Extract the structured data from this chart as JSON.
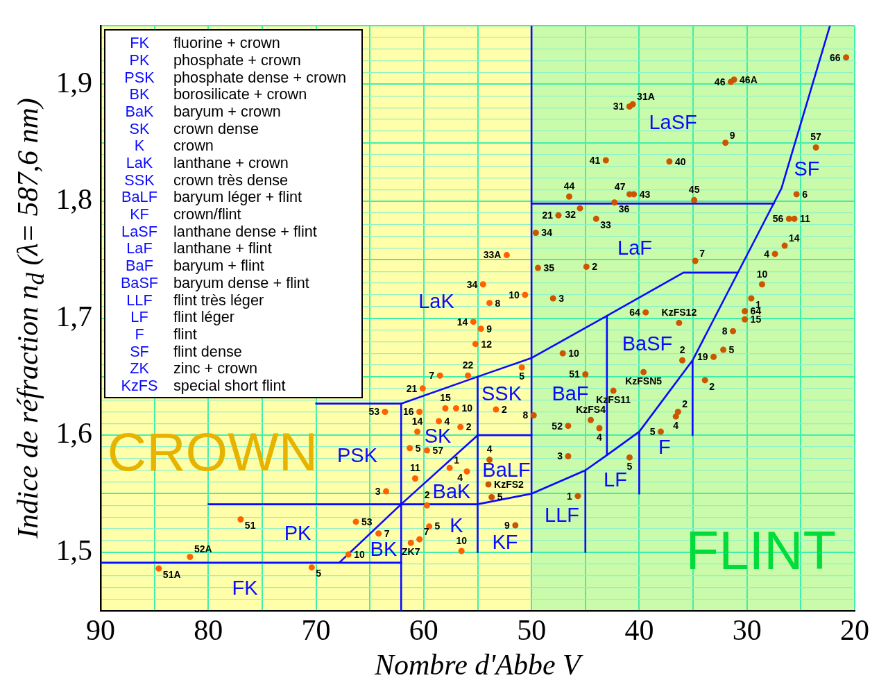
{
  "chart_data": {
    "type": "scatter",
    "xlabel": "Nombre d'Abbe V",
    "ylabel": "Indice de réfraction n$_{d}$ (λ= 587,6 nm)",
    "xlim": [
      90,
      20
    ],
    "ylim": [
      1.45,
      1.95
    ],
    "xticks": [
      90,
      {
        "value": 85,
        "label": null
      },
      80,
      {
        "value": 75,
        "label": null
      },
      70,
      {
        "value": 65,
        "label": null
      },
      60,
      {
        "value": 55,
        "label": null
      },
      50,
      {
        "value": 45,
        "label": null
      },
      40,
      {
        "value": 35,
        "label": null
      },
      30,
      {
        "value": 25,
        "label": null
      },
      20
    ],
    "yticks": [
      {
        "value": 1.45,
        "label": null
      },
      {
        "value": 1.46,
        "label": null
      },
      {
        "value": 1.47,
        "label": null
      },
      {
        "value": 1.48,
        "label": null
      },
      {
        "value": 1.49,
        "label": null
      },
      {
        "value": 1.5,
        "label": "1,5"
      },
      {
        "value": 1.51,
        "label": null
      },
      {
        "value": 1.52,
        "label": null
      },
      {
        "value": 1.53,
        "label": null
      },
      {
        "value": 1.54,
        "label": null
      },
      {
        "value": 1.55,
        "label": null
      },
      {
        "value": 1.56,
        "label": null
      },
      {
        "value": 1.57,
        "label": null
      },
      {
        "value": 1.58,
        "label": null
      },
      {
        "value": 1.59,
        "label": null
      },
      {
        "value": 1.6,
        "label": "1,6"
      },
      {
        "value": 1.61,
        "label": null
      },
      {
        "value": 1.62,
        "label": null
      },
      {
        "value": 1.63,
        "label": null
      },
      {
        "value": 1.64,
        "label": null
      },
      {
        "value": 1.65,
        "label": null
      },
      {
        "value": 1.66,
        "label": null
      },
      {
        "value": 1.67,
        "label": null
      },
      {
        "value": 1.68,
        "label": null
      },
      {
        "value": 1.69,
        "label": null
      },
      {
        "value": 1.7,
        "label": "1,7"
      },
      {
        "value": 1.71,
        "label": null
      },
      {
        "value": 1.72,
        "label": null
      },
      {
        "value": 1.73,
        "label": null
      },
      {
        "value": 1.74,
        "label": null
      },
      {
        "value": 1.75,
        "label": null
      },
      {
        "value": 1.76,
        "label": null
      },
      {
        "value": 1.77,
        "label": null
      },
      {
        "value": 1.78,
        "label": null
      },
      {
        "value": 1.79,
        "label": null
      },
      {
        "value": 1.8,
        "label": "1,8"
      },
      {
        "value": 1.81,
        "label": null
      },
      {
        "value": 1.82,
        "label": null
      },
      {
        "value": 1.83,
        "label": null
      },
      {
        "value": 1.84,
        "label": null
      },
      {
        "value": 1.85,
        "label": null
      },
      {
        "value": 1.86,
        "label": null
      },
      {
        "value": 1.87,
        "label": null
      },
      {
        "value": 1.88,
        "label": null
      },
      {
        "value": 1.89,
        "label": null
      },
      {
        "value": 1.9,
        "label": "1,9"
      },
      {
        "value": 1.91,
        "label": null
      },
      {
        "value": 1.92,
        "label": null
      },
      {
        "value": 1.93,
        "label": null
      },
      {
        "value": 1.94,
        "label": null
      },
      {
        "value": 1.95,
        "label": null
      }
    ],
    "grid": true,
    "marker": "circle",
    "bands": [
      {
        "axis": "x",
        "from": 90,
        "to": 50,
        "label": "CROWN",
        "color": "#ffffaa"
      },
      {
        "axis": "x",
        "from": 50,
        "to": 20,
        "label": "FLINT",
        "color": "#c9fbaa"
      }
    ],
    "annotations": [
      "FK fluorine + crown",
      "PK phosphate + crown",
      "PSK phosphate dense + crown",
      "BK borosilicate + crown",
      "BaK baryum + crown",
      "SK crown dense",
      "K crown",
      "LaK lanthane + crown",
      "SSK crown très dense",
      "BaLF baryum léger + flint",
      "KF crown/flint",
      "LaSF lanthane dense + flint",
      "LaF lanthane + flint",
      "BaF baryum + flint",
      "BaSF baryum dense + flint",
      "LLF flint très léger",
      "LF flint léger",
      "F flint",
      "SF flint dense",
      "ZK zinc + crown",
      "KzFS special short flint",
      "FK",
      "PK",
      "PSK",
      "BK",
      "BaK",
      "SK",
      "K",
      "LaK",
      "SSK",
      "BaLF",
      "KF",
      "LaSF",
      "LaF",
      "BaF",
      "BaSF",
      "LLF",
      "LF",
      "F",
      "SF"
    ],
    "series": [
      {
        "type": "line",
        "color": "#0a0aff",
        "marker": "none",
        "x": [
          90,
          62.1
        ],
        "values": [
          1.491,
          1.491
        ]
      },
      {
        "type": "line",
        "color": "#0a0aff",
        "marker": "none",
        "x": [
          67.85,
          62.1,
          55,
          50
        ],
        "values": [
          1.491,
          1.541,
          1.6,
          1.6
        ]
      },
      {
        "type": "line",
        "color": "#0a0aff",
        "marker": "none",
        "x": [
          80,
          55,
          50,
          45,
          43,
          40,
          35.05,
          26.8,
          22.3
        ],
        "values": [
          1.541,
          1.541,
          1.55,
          1.57,
          1.583,
          1.603,
          1.664,
          1.811,
          1.95
        ]
      },
      {
        "type": "line",
        "color": "#0a0aff",
        "marker": "none",
        "x": [
          62.1,
          62.1
        ],
        "values": [
          1.627,
          1.45
        ]
      },
      {
        "type": "line",
        "color": "#0a0aff",
        "marker": "none",
        "x": [
          70,
          62.1,
          55,
          50,
          43,
          35.9,
          30.85
        ],
        "values": [
          1.627,
          1.627,
          1.65,
          1.666,
          1.702,
          1.739,
          1.739
        ]
      },
      {
        "type": "line",
        "color": "#0a0aff",
        "marker": "none",
        "x": [
          55,
          55
        ],
        "values": [
          1.65,
          1.5
        ]
      },
      {
        "type": "line",
        "color": "#0a0aff",
        "marker": "none",
        "x": [
          50,
          50
        ],
        "values": [
          1.95,
          1.5
        ]
      },
      {
        "type": "line",
        "color": "#0a0aff",
        "marker": "none",
        "x": [
          50,
          27.5
        ],
        "values": [
          1.798,
          1.798
        ]
      },
      {
        "type": "line",
        "color": "#0a0aff",
        "marker": "none",
        "x": [
          43,
          43
        ],
        "values": [
          1.702,
          1.583
        ]
      },
      {
        "type": "line",
        "color": "#0a0aff",
        "marker": "none",
        "x": [
          45,
          45
        ],
        "values": [
          1.57,
          1.5
        ]
      },
      {
        "type": "line",
        "color": "#0a0aff",
        "marker": "none",
        "x": [
          40,
          40
        ],
        "values": [
          1.603,
          1.55
        ]
      },
      {
        "type": "line",
        "color": "#0a0aff",
        "marker": "none",
        "x": [
          35.05,
          35.05
        ],
        "values": [
          1.664,
          1.6
        ]
      },
      {
        "name": "66",
        "color": "#cc5500",
        "x": [
          20.8
        ],
        "values": [
          1.923
        ]
      },
      {
        "name": "46",
        "color": "#cc5500",
        "x": [
          31.5
        ],
        "values": [
          1.902
        ]
      },
      {
        "name": "46A",
        "color": "#cc5500",
        "x": [
          31.2
        ],
        "values": [
          1.904
        ]
      },
      {
        "name": "31",
        "color": "#cc5500",
        "x": [
          40.9
        ],
        "values": [
          1.881
        ]
      },
      {
        "name": "31A",
        "color": "#cc5500",
        "x": [
          40.6
        ],
        "values": [
          1.883
        ]
      },
      {
        "name": "9",
        "color": "#cc5500",
        "x": [
          32.0
        ],
        "values": [
          1.85
        ]
      },
      {
        "name": "57",
        "color": "#cc5500",
        "x": [
          23.6
        ],
        "values": [
          1.846
        ]
      },
      {
        "name": "41",
        "color": "#cc5500",
        "x": [
          43.1
        ],
        "values": [
          1.835
        ]
      },
      {
        "name": "40",
        "color": "#cc5500",
        "x": [
          37.2
        ],
        "values": [
          1.834
        ]
      },
      {
        "name": "44",
        "color": "#cc5500",
        "x": [
          46.5
        ],
        "values": [
          1.804
        ]
      },
      {
        "name": "47",
        "color": "#cc5500",
        "x": [
          40.9
        ],
        "values": [
          1.806
        ]
      },
      {
        "name": "43",
        "color": "#cc5500",
        "x": [
          40.5
        ],
        "values": [
          1.806
        ]
      },
      {
        "name": "36",
        "color": "#cc5500",
        "x": [
          42.3
        ],
        "values": [
          1.799
        ]
      },
      {
        "name": "45",
        "color": "#cc5500",
        "x": [
          34.9
        ],
        "values": [
          1.801
        ]
      },
      {
        "name": "6",
        "color": "#cc5500",
        "x": [
          25.4
        ],
        "values": [
          1.806
        ]
      },
      {
        "name": "32",
        "color": "#cc5500",
        "x": [
          45.5
        ],
        "values": [
          1.794
        ]
      },
      {
        "name": "33",
        "color": "#cc5500",
        "x": [
          44.0
        ],
        "values": [
          1.785
        ]
      },
      {
        "name": "21",
        "color": "#cc5500",
        "x": [
          47.5
        ],
        "values": [
          1.788
        ]
      },
      {
        "name": "56",
        "color": "#cc5500",
        "x": [
          26.1
        ],
        "values": [
          1.785
        ]
      },
      {
        "name": "11",
        "color": "#cc5500",
        "x": [
          25.6
        ],
        "values": [
          1.785
        ]
      },
      {
        "name": "34",
        "color": "#cc5500",
        "x": [
          49.6
        ],
        "values": [
          1.773
        ]
      },
      {
        "name": "14",
        "color": "#cc5500",
        "x": [
          26.5
        ],
        "values": [
          1.762
        ]
      },
      {
        "name": "4",
        "color": "#cc5500",
        "x": [
          27.4
        ],
        "values": [
          1.755
        ]
      },
      {
        "name": "7",
        "color": "#cc5500",
        "x": [
          34.8
        ],
        "values": [
          1.749
        ]
      },
      {
        "name": "33A",
        "color": "#ff6000",
        "x": [
          52.3
        ],
        "values": [
          1.754
        ]
      },
      {
        "name": "35",
        "color": "#cc5500",
        "x": [
          49.4
        ],
        "values": [
          1.743
        ]
      },
      {
        "name": "2",
        "color": "#cc5500",
        "x": [
          44.9
        ],
        "values": [
          1.744
        ]
      },
      {
        "name": "10",
        "color": "#cc5500",
        "x": [
          28.6
        ],
        "values": [
          1.729
        ]
      },
      {
        "name": "34",
        "color": "#ff6000",
        "x": [
          54.5
        ],
        "values": [
          1.729
        ]
      },
      {
        "name": "10",
        "color": "#ff6000",
        "x": [
          50.6
        ],
        "values": [
          1.72
        ]
      },
      {
        "name": "3",
        "color": "#cc5500",
        "x": [
          48.0
        ],
        "values": [
          1.717
        ]
      },
      {
        "name": "8",
        "color": "#ff6000",
        "x": [
          53.9
        ],
        "values": [
          1.713
        ]
      },
      {
        "name": "1",
        "color": "#cc5500",
        "x": [
          29.6
        ],
        "values": [
          1.717
        ]
      },
      {
        "name": "64",
        "color": "#cc5500",
        "x": [
          30.2
        ],
        "values": [
          1.706
        ]
      },
      {
        "name": "64",
        "color": "#cc5500",
        "x": [
          39.4
        ],
        "values": [
          1.705
        ]
      },
      {
        "name": "KzFS12",
        "color": "#cc5500",
        "x": [
          36.3
        ],
        "values": [
          1.696
        ]
      },
      {
        "name": "15",
        "color": "#cc5500",
        "x": [
          30.2
        ],
        "values": [
          1.699
        ]
      },
      {
        "name": "14",
        "color": "#ff6000",
        "x": [
          55.4
        ],
        "values": [
          1.697
        ]
      },
      {
        "name": "9",
        "color": "#ff6000",
        "x": [
          54.7
        ],
        "values": [
          1.691
        ]
      },
      {
        "name": "8",
        "color": "#cc5500",
        "x": [
          31.3
        ],
        "values": [
          1.689
        ]
      },
      {
        "name": "12",
        "color": "#ff6000",
        "x": [
          55.2
        ],
        "values": [
          1.678
        ]
      },
      {
        "name": "5",
        "color": "#cc5500",
        "x": [
          32.2
        ],
        "values": [
          1.673
        ]
      },
      {
        "name": "10",
        "color": "#cc5500",
        "x": [
          47.1
        ],
        "values": [
          1.67
        ]
      },
      {
        "name": "19",
        "color": "#cc5500",
        "x": [
          33.1
        ],
        "values": [
          1.667
        ]
      },
      {
        "name": "2",
        "color": "#cc5500",
        "x": [
          36.0
        ],
        "values": [
          1.664
        ]
      },
      {
        "name": "22",
        "color": "#ff6000",
        "x": [
          55.9
        ],
        "values": [
          1.651
        ]
      },
      {
        "name": "7",
        "color": "#ff6000",
        "x": [
          58.5
        ],
        "values": [
          1.651
        ]
      },
      {
        "name": "5",
        "color": "#ff6000",
        "x": [
          50.9
        ],
        "values": [
          1.658
        ]
      },
      {
        "name": "51",
        "color": "#cc5500",
        "x": [
          45.0
        ],
        "values": [
          1.652
        ]
      },
      {
        "name": "KzFSN5",
        "color": "#cc5500",
        "x": [
          39.6
        ],
        "values": [
          1.654
        ]
      },
      {
        "name": "2",
        "color": "#cc5500",
        "x": [
          33.9
        ],
        "values": [
          1.647
        ]
      },
      {
        "name": "21",
        "color": "#ff6000",
        "x": [
          60.1
        ],
        "values": [
          1.64
        ]
      },
      {
        "name": "KzFS11",
        "color": "#cc5500",
        "x": [
          42.4
        ],
        "values": [
          1.638
        ]
      },
      {
        "name": "15",
        "color": "#ff6000",
        "x": [
          58.0
        ],
        "values": [
          1.623
        ]
      },
      {
        "name": "10",
        "color": "#ff6000",
        "x": [
          57.0
        ],
        "values": [
          1.623
        ]
      },
      {
        "name": "53",
        "color": "#ff6000",
        "x": [
          63.6
        ],
        "values": [
          1.62
        ]
      },
      {
        "name": "16",
        "color": "#ff6000",
        "x": [
          60.4
        ],
        "values": [
          1.62
        ]
      },
      {
        "name": "2",
        "color": "#ff6000",
        "x": [
          53.3
        ],
        "values": [
          1.622
        ]
      },
      {
        "name": "2",
        "color": "#cc5500",
        "x": [
          36.4
        ],
        "values": [
          1.62
        ]
      },
      {
        "name": "8",
        "color": "#cc5500",
        "x": [
          49.8
        ],
        "values": [
          1.617
        ]
      },
      {
        "name": "4",
        "color": "#cc5500",
        "x": [
          36.6
        ],
        "values": [
          1.616
        ]
      },
      {
        "name": "KzFS4",
        "color": "#cc5500",
        "x": [
          44.5
        ],
        "values": [
          1.613
        ]
      },
      {
        "name": "4",
        "color": "#ff6000",
        "x": [
          58.6
        ],
        "values": [
          1.612
        ]
      },
      {
        "name": "52",
        "color": "#cc5500",
        "x": [
          46.6
        ],
        "values": [
          1.608
        ]
      },
      {
        "name": "4",
        "color": "#cc5500",
        "x": [
          43.7
        ],
        "values": [
          1.606
        ]
      },
      {
        "name": "2",
        "color": "#ff6000",
        "x": [
          56.6
        ],
        "values": [
          1.607
        ]
      },
      {
        "name": "14",
        "color": "#ff6000",
        "x": [
          60.6
        ],
        "values": [
          1.603
        ]
      },
      {
        "name": "5",
        "color": "#cc5500",
        "x": [
          38.0
        ],
        "values": [
          1.603
        ]
      },
      {
        "name": "5",
        "color": "#ff6000",
        "x": [
          61.3
        ],
        "values": [
          1.589
        ]
      },
      {
        "name": "57",
        "color": "#ff6000",
        "x": [
          59.7
        ],
        "values": [
          1.587
        ]
      },
      {
        "name": "3",
        "color": "#cc5500",
        "x": [
          46.6
        ],
        "values": [
          1.582
        ]
      },
      {
        "name": "5",
        "color": "#cc5500",
        "x": [
          40.9
        ],
        "values": [
          1.581
        ]
      },
      {
        "name": "4",
        "color": "#cc5500",
        "x": [
          53.9
        ],
        "values": [
          1.579
        ]
      },
      {
        "name": "1",
        "color": "#ff6000",
        "x": [
          57.6
        ],
        "values": [
          1.572
        ]
      },
      {
        "name": "4",
        "color": "#ff6000",
        "x": [
          56.0
        ],
        "values": [
          1.569
        ]
      },
      {
        "name": "11",
        "color": "#ff6000",
        "x": [
          60.8
        ],
        "values": [
          1.563
        ]
      },
      {
        "name": "KzFS2",
        "color": "#cc5500",
        "x": [
          54.0
        ],
        "values": [
          1.558
        ]
      },
      {
        "name": "3",
        "color": "#ff6000",
        "x": [
          63.5
        ],
        "values": [
          1.552
        ]
      },
      {
        "name": "5",
        "color": "#cc5500",
        "x": [
          53.7
        ],
        "values": [
          1.547
        ]
      },
      {
        "name": "1",
        "color": "#cc5500",
        "x": [
          45.7
        ],
        "values": [
          1.548
        ]
      },
      {
        "name": "2",
        "color": "#ff6000",
        "x": [
          59.7
        ],
        "values": [
          1.54
        ]
      },
      {
        "name": "51",
        "color": "#ff6000",
        "x": [
          77.0
        ],
        "values": [
          1.528
        ]
      },
      {
        "name": "53",
        "color": "#ff6000",
        "x": [
          66.3
        ],
        "values": [
          1.526
        ]
      },
      {
        "name": "5",
        "color": "#ff6000",
        "x": [
          59.5
        ],
        "values": [
          1.522
        ]
      },
      {
        "name": "9",
        "color": "#cc5500",
        "x": [
          51.5
        ],
        "values": [
          1.523
        ]
      },
      {
        "name": "7",
        "color": "#ff6000",
        "x": [
          64.2
        ],
        "values": [
          1.516
        ]
      },
      {
        "name": "7",
        "color": "#ff6000",
        "x": [
          60.4
        ],
        "values": [
          1.511
        ]
      },
      {
        "name": "ZK7",
        "color": "#ff6000",
        "x": [
          61.2
        ],
        "values": [
          1.508
        ]
      },
      {
        "name": "10",
        "color": "#ff6000",
        "x": [
          56.5
        ],
        "values": [
          1.501
        ]
      },
      {
        "name": "52A",
        "color": "#ff6000",
        "x": [
          81.7
        ],
        "values": [
          1.496
        ]
      },
      {
        "name": "10",
        "color": "#ff6000",
        "x": [
          67.0
        ],
        "values": [
          1.498
        ]
      },
      {
        "name": "51A",
        "color": "#ff6000",
        "x": [
          84.6
        ],
        "values": [
          1.486
        ]
      },
      {
        "name": "5",
        "color": "#ff6000",
        "x": [
          70.4
        ],
        "values": [
          1.487
        ]
      }
    ]
  }
}
